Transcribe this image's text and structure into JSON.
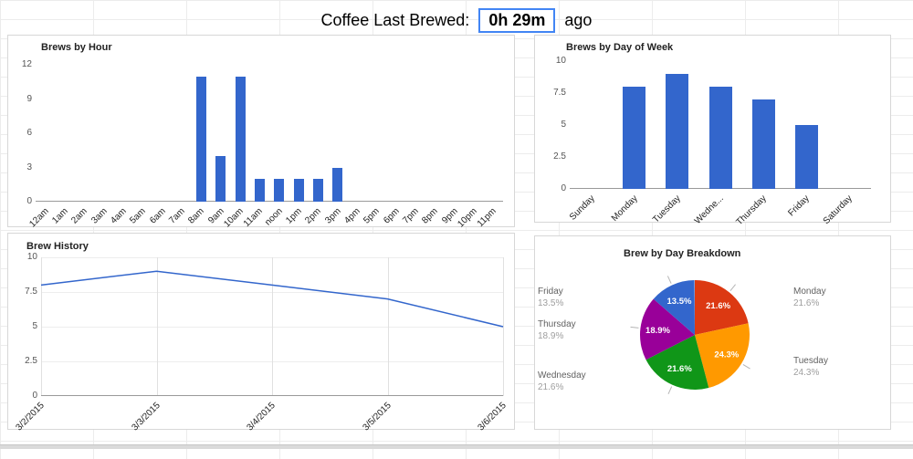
{
  "header": {
    "label": "Coffee Last Brewed:",
    "value": "0h 29m",
    "suffix": "ago"
  },
  "colors": {
    "selection_blue": "#4285f4",
    "series_blue": "#3366cc"
  },
  "chart_data": [
    {
      "id": "byHour",
      "type": "bar",
      "title": "Brews by Hour",
      "categories": [
        "12am",
        "1am",
        "2am",
        "3am",
        "4am",
        "5am",
        "6am",
        "7am",
        "8am",
        "9am",
        "10am",
        "11am",
        "noon",
        "1pm",
        "2pm",
        "3pm",
        "4pm",
        "5pm",
        "6pm",
        "7pm",
        "8pm",
        "9pm",
        "10pm",
        "11pm"
      ],
      "values": [
        0,
        0,
        0,
        0,
        0,
        0,
        0,
        0,
        11,
        4,
        11,
        2,
        2,
        2,
        2,
        3,
        0,
        0,
        0,
        0,
        0,
        0,
        0,
        0
      ],
      "ylim": [
        0,
        12
      ],
      "yticks": [
        0,
        3,
        6,
        9,
        12
      ],
      "bar_color": "#3366cc"
    },
    {
      "id": "byDay",
      "type": "bar",
      "title": "Brews by Day of Week",
      "categories": [
        "Sunday",
        "Monday",
        "Tuesday",
        "Wedne...",
        "Thursday",
        "Friday",
        "Saturday"
      ],
      "values": [
        0,
        8,
        9,
        8,
        7,
        5,
        0
      ],
      "ylim": [
        0,
        10
      ],
      "yticks": [
        0,
        2.5,
        5,
        7.5,
        10
      ],
      "bar_color": "#3366cc"
    },
    {
      "id": "history",
      "type": "line",
      "title": "Brew History",
      "x": [
        "3/2/2015",
        "3/3/2015",
        "3/4/2015",
        "3/5/2015",
        "3/6/2015"
      ],
      "values": [
        8,
        9,
        8,
        7,
        5
      ],
      "ylim": [
        0,
        10
      ],
      "yticks": [
        0,
        2.5,
        5,
        7.5,
        10
      ],
      "line_color": "#3366cc"
    },
    {
      "id": "breakdown",
      "type": "pie",
      "title": "Brew by Day Breakdown",
      "slices": [
        {
          "label": "Monday",
          "pct": 21.6,
          "color": "#dc3912"
        },
        {
          "label": "Tuesday",
          "pct": 24.3,
          "color": "#ff9900"
        },
        {
          "label": "Wednesday",
          "pct": 21.6,
          "color": "#109618"
        },
        {
          "label": "Thursday",
          "pct": 18.9,
          "color": "#990099"
        },
        {
          "label": "Friday",
          "pct": 13.5,
          "color": "#3366cc"
        }
      ]
    }
  ]
}
